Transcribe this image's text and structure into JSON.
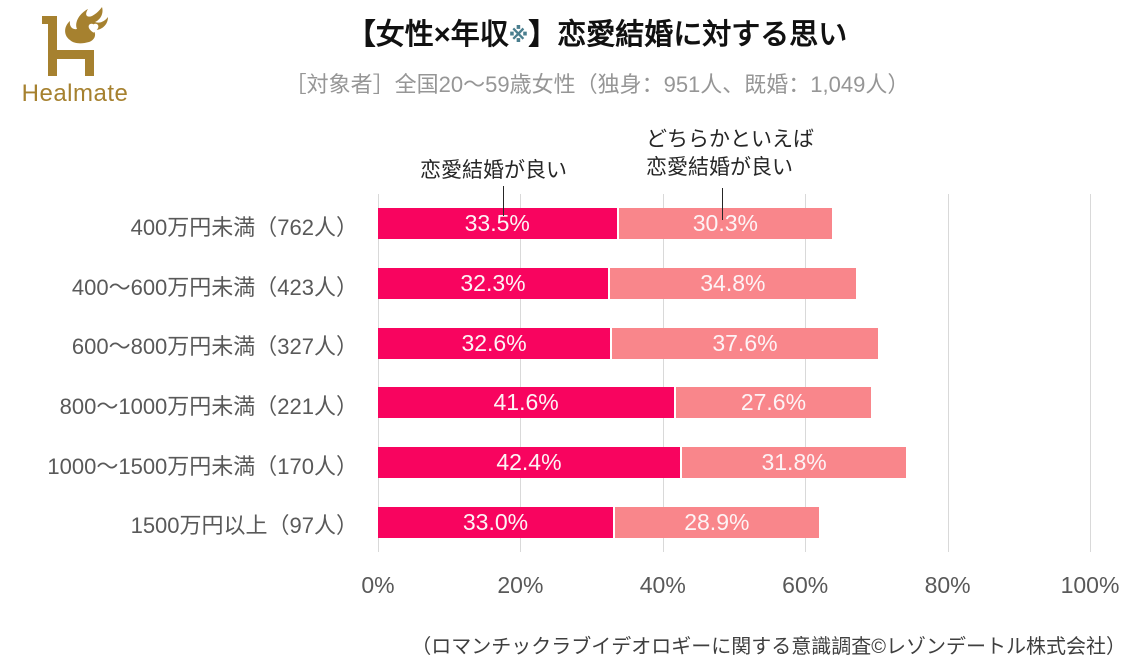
{
  "brand": {
    "logo_text": "Healmate",
    "logo_color": "#a6812f"
  },
  "header": {
    "title_prefix": "【女性×年収",
    "title_marker": "※",
    "title_marker_color": "#4a7e8e",
    "title_suffix": "】恋愛結婚に対する思い",
    "subtitle": "［対象者］全国20〜59歳女性（独身：951人、既婚：1,049人）"
  },
  "annotations": {
    "series1_label": "恋愛結婚が良い",
    "series2_label_line1": "どちらかといえば",
    "series2_label_line2": "恋愛結婚が良い"
  },
  "chart_data": {
    "type": "bar",
    "orientation": "horizontal",
    "stacked": true,
    "title": "【女性×年収※】恋愛結婚に対する思い",
    "categories": [
      "400万円未満（762人）",
      "400〜600万円未満（423人）",
      "600〜800万円未満（327人）",
      "800〜1000万円未満（221人）",
      "1000〜1500万円未満（170人）",
      "1500万円以上（97人）"
    ],
    "series": [
      {
        "name": "恋愛結婚が良い",
        "color": "#f8045f",
        "values": [
          33.5,
          32.3,
          32.6,
          41.6,
          42.4,
          33.0
        ]
      },
      {
        "name": "どちらかといえば恋愛結婚が良い",
        "color": "#f9868b",
        "values": [
          30.3,
          34.8,
          37.6,
          27.6,
          31.8,
          28.9
        ]
      }
    ],
    "value_suffix": "%",
    "xlim": [
      0,
      100
    ],
    "x_ticks": [
      "0%",
      "20%",
      "40%",
      "60%",
      "80%",
      "100%"
    ],
    "grid": true,
    "gridline_color": "#d9d9d9",
    "legend_position": "annotations-above-first-row"
  },
  "footer": {
    "source": "（ロマンチックラブイデオロギーに関する意識調査©レゾンデートル株式会社）"
  }
}
